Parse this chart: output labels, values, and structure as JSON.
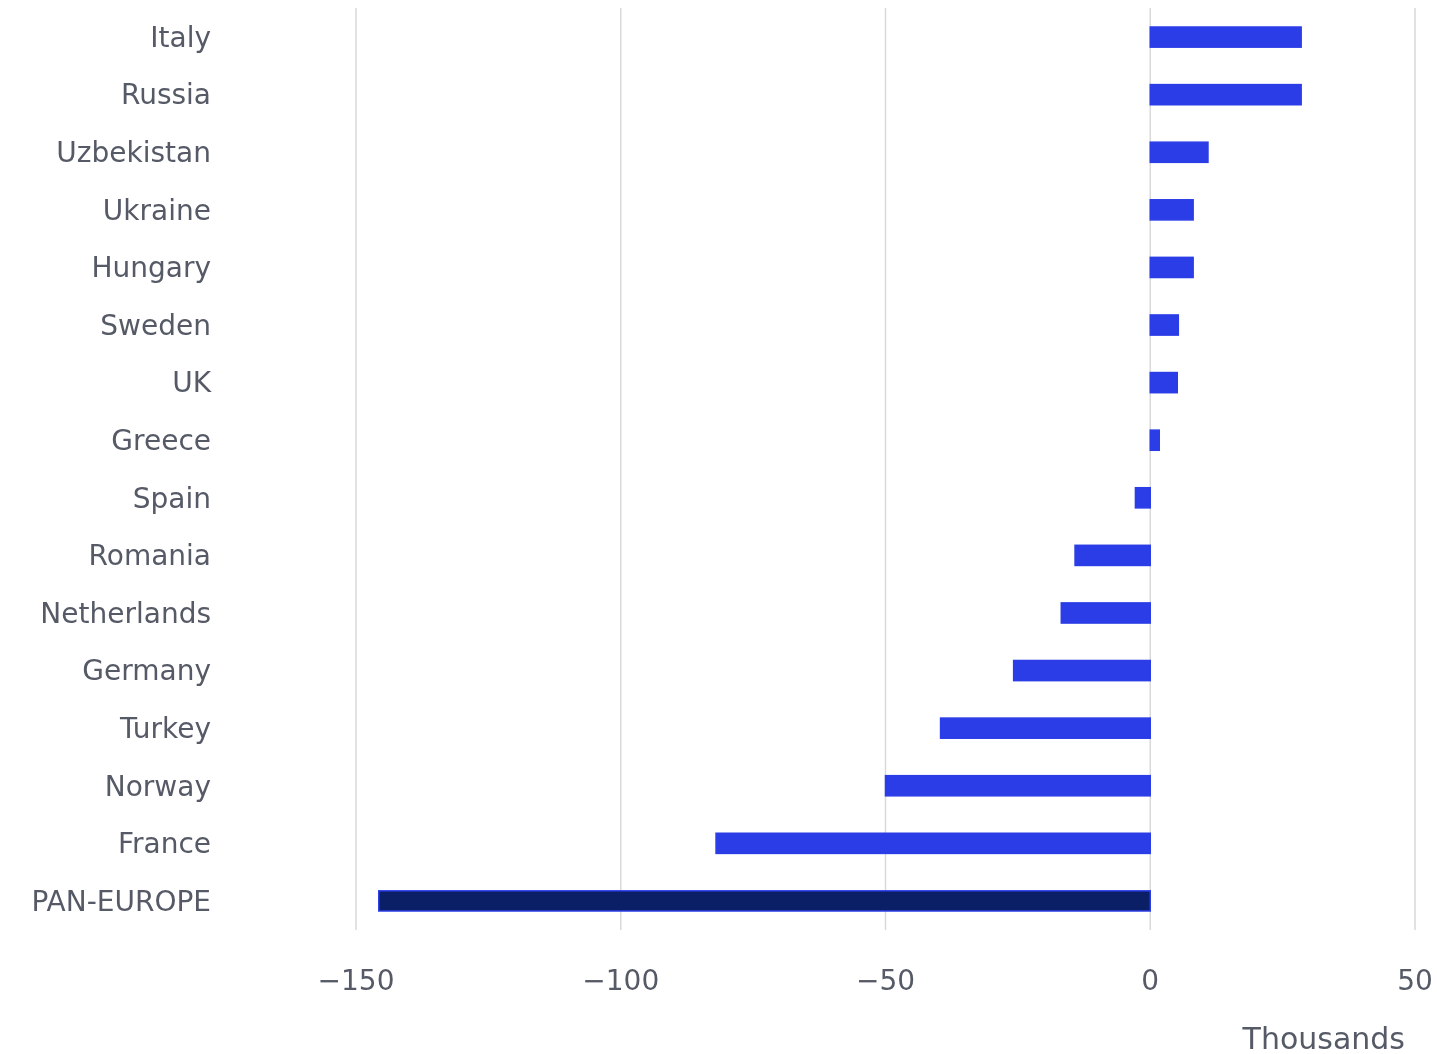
{
  "chart_data": {
    "type": "bar",
    "orientation": "horizontal",
    "xlabel": "Thousands",
    "categories": [
      "Italy",
      "Russia",
      "Uzbekistan",
      "Ukraine",
      "Hungary",
      "Sweden",
      "UK",
      "Greece",
      "Spain",
      "Romania",
      "Netherlands",
      "Germany",
      "Turkey",
      "Norway",
      "France",
      "PAN-EUROPE"
    ],
    "values": [
      28.5,
      28.5,
      10.9,
      8.1,
      8.1,
      5.3,
      5.1,
      1.7,
      -2.8,
      -14.2,
      -16.8,
      -25.8,
      -39.6,
      -50,
      -82,
      -145.7
    ],
    "colors": [
      "#2b3de6",
      "#2b3de6",
      "#2b3de6",
      "#2b3de6",
      "#2b3de6",
      "#2b3de6",
      "#2b3de6",
      "#2b3de6",
      "#2b3de6",
      "#2b3de6",
      "#2b3de6",
      "#2b3de6",
      "#2b3de6",
      "#2b3de6",
      "#2b3de6",
      "#0a1f66"
    ],
    "xlim": [
      -150,
      50
    ],
    "xticks": [
      -150,
      -100,
      -50,
      0,
      50
    ],
    "grid": "x"
  }
}
